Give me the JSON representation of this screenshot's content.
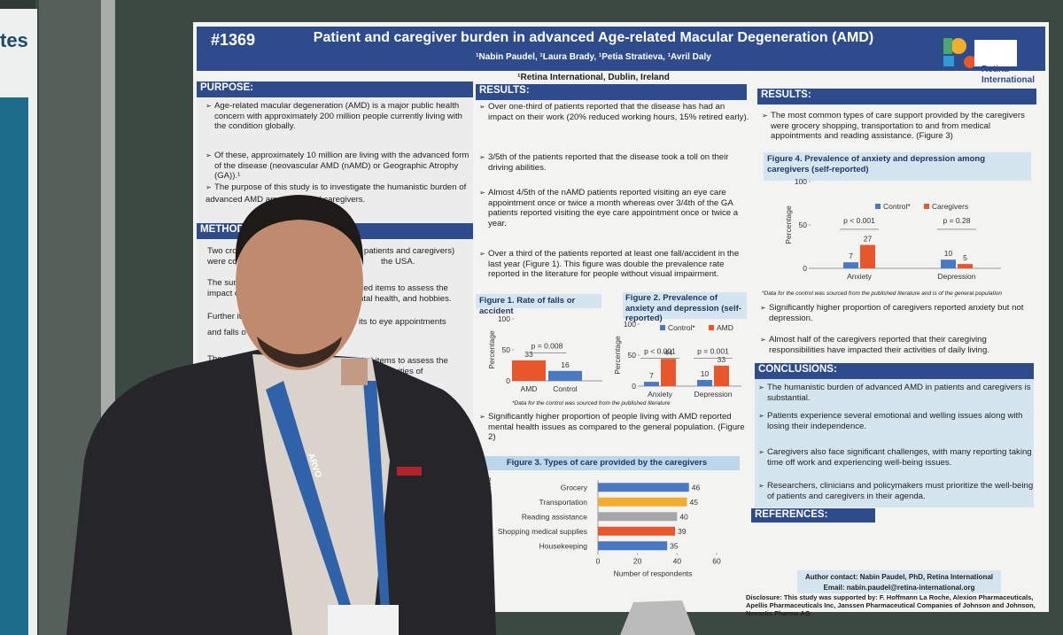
{
  "poster": {
    "number": "#1369",
    "title": "Patient and caregiver burden in advanced Age-related Macular Degeneration (AMD)",
    "authors": "¹Nabin Paudel, ¹Laura Brady, ¹Petia Stratieva, ¹Avril Daly",
    "affiliation": "¹Retina International, Dublin, Ireland",
    "logo": "Retina International",
    "purpose": {
      "heading": "PURPOSE:",
      "bullets": [
        "Age-related macular degeneration (AMD) is a major public health concern with approximately 200 million people currently living with the condition globally.",
        "Of these, approximately 10 million are living with the advanced form of the disease (neovascular AMD (nAMD) or Geographic Atrophy (GA)).¹",
        "The purpose of this study is to investigate the humanistic burden of",
        "advanced AMD am",
        "nd caregivers."
      ]
    },
    "methods": {
      "heading": "METHODS:",
      "fragments": [
        "Two cro",
        "r patients and caregivers)",
        "were co",
        "the USA.",
        "The surve",
        "ded items to assess the",
        "impact o",
        "ntal health, and hobbies.",
        "Further it",
        "its to eye appointments",
        "and falls o",
        "The ques",
        "ded items to assess the",
        "impa",
        "activities of"
      ]
    },
    "results_mid": {
      "heading": "RESULTS:",
      "bullets": [
        "Over one-third of patients reported that the disease has had an impact on their work (20% reduced working hours, 15% retired early).",
        "3/5th of the patients reported that the disease took a toll on their driving abilities.",
        "Almost 4/5th of the nAMD patients reported visiting an eye care appointment once or twice a month whereas over 3/4th of the GA patients reported visiting the eye care appointment once or twice a year.",
        "Over a third of the patients reported at least one fall/accident in the last year (Figure 1). This figure was double the prevalence rate reported in the literature for people without visual impairment.",
        "Significantly higher proportion of people living with AMD reported mental health issues as compared to the general population. (Figure 2)"
      ]
    },
    "figure1": {
      "type": "bar",
      "title": "Figure 1. Rate of falls or accident",
      "y_label": "Percentage",
      "categories": [
        "AMD",
        "Control"
      ],
      "values": [
        33,
        16
      ],
      "colors": [
        "#e8562b",
        "#4a78c2"
      ],
      "ylim": [
        0,
        100
      ],
      "yticks": [
        0,
        50,
        100
      ],
      "annotations": [
        "p = 0.008"
      ],
      "note": "*Data for the control was sourced from the published literature"
    },
    "figure2": {
      "type": "bar",
      "title": "Figure 2. Prevalence of anxiety and depression (self-reported)",
      "y_label": "Percentage",
      "categories": [
        "Anxiety",
        "Depression"
      ],
      "series": [
        {
          "name": "Control*",
          "color": "#4a78c2",
          "values": [
            7,
            10
          ]
        },
        {
          "name": "AMD",
          "color": "#e8562b",
          "values": [
            44,
            33
          ]
        }
      ],
      "ylim": [
        0,
        100
      ],
      "yticks": [
        0,
        50,
        100
      ],
      "annotations": [
        "p < 0.001",
        "p = 0.001"
      ]
    },
    "figure3": {
      "type": "hbar",
      "title": "Figure 3.  Types of care provided by the caregivers",
      "x_label": "Number of respondents",
      "y_label": "Types of care provided",
      "categories": [
        "Grocery",
        "Transportation",
        "Reading assistance",
        "Shopping medical supplies",
        "Housekeeping"
      ],
      "values": [
        46,
        45,
        40,
        39,
        35
      ],
      "colors": [
        "#4a78c2",
        "#f0ad2e",
        "#a6a6a6",
        "#e8562b",
        "#4a78c2"
      ],
      "xlim": [
        0,
        60
      ],
      "xticks": [
        0,
        20,
        40,
        60
      ]
    },
    "results_right": {
      "heading": "RESULTS:",
      "bullets": [
        "The most common types of care support provided by the caregivers were grocery shopping, transportation to and from medical appointments and reading assistance. (Figure 3)",
        "Significantly higher proportion of caregivers reported anxiety but not depression.",
        "Almost half of the caregivers reported that their caregiving responsibilities have impacted their activities of daily living."
      ]
    },
    "figure4": {
      "type": "bar",
      "title": "Figure 4. Prevalence of anxiety and depression among caregivers (self-reported)",
      "y_label": "Percentage",
      "categories": [
        "Anxiety",
        "Depression"
      ],
      "series": [
        {
          "name": "Control*",
          "color": "#4a78c2",
          "values": [
            7,
            10
          ]
        },
        {
          "name": "Caregivers",
          "color": "#e8562b",
          "values": [
            27,
            5
          ]
        }
      ],
      "ylim": [
        0,
        100
      ],
      "yticks": [
        0,
        50,
        100
      ],
      "annotations": [
        "p < 0.001",
        "p = 0.28"
      ],
      "note": "*Data for the control was sourced from the published literature and is of the general population"
    },
    "conclusions": {
      "heading": "CONCLUSIONS:",
      "bullets": [
        "The humanistic burden of advanced AMD in patients and caregivers is substantial.",
        "Patients experience several emotional and welling issues along with losing their independence.",
        "Caregivers also face significant challenges, with many reporting taking time off work and experiencing well-being issues.",
        "Researchers, clinicians and policymakers must prioritize the well-being of patients and caregivers in their agenda."
      ]
    },
    "references": {
      "heading": "REFERENCES:"
    },
    "contact": [
      "Author contact: Nabin Paudel, PhD, Retina International",
      "Email: nabin.paudel@retina-international.org"
    ],
    "disclosure": "Disclosure: This study was supported by: F. Hoffmann La Roche, Alexion Pharmaceuticals, Apellis Pharmaceuticals Inc, Janssen Pharmaceutical Companies of Johnson and Johnson, Novartis Pharma AG"
  },
  "side_sign": "tes",
  "lanyard": "ARVO"
}
